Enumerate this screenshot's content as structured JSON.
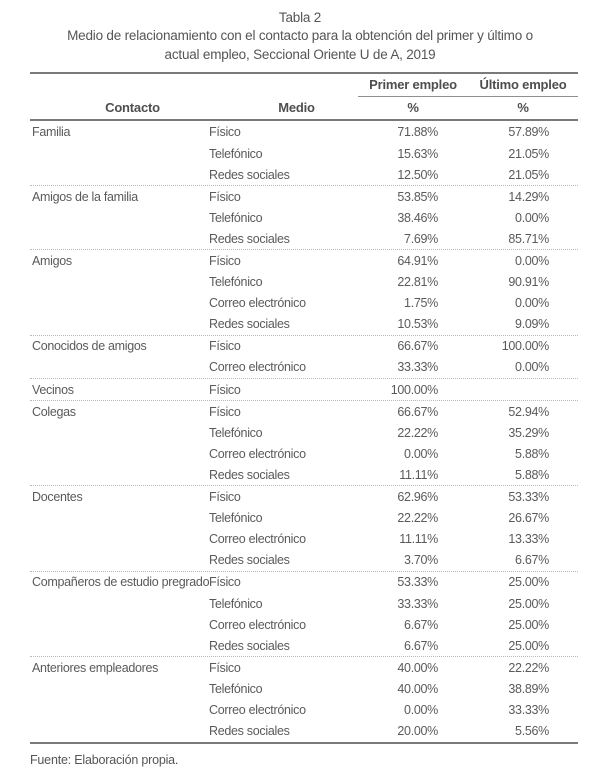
{
  "table": {
    "label": "Tabla 2",
    "title_line1": "Medio de relacionamiento con el contacto para la obtención del primer y último o",
    "title_line2": "actual empleo, Seccional Oriente U de A, 2019",
    "source": "Fuente: Elaboración propia.",
    "headers": {
      "contacto": "Contacto",
      "medio": "Medio",
      "primer_empleo": "Primer empleo",
      "ultimo_empleo": "Último empleo",
      "percent_primer": "%",
      "percent_ultimo": "%"
    },
    "groups": [
      {
        "contacto": "Familia",
        "rows": [
          {
            "medio": "Físico",
            "primer": "71.88%",
            "ultimo": "57.89%"
          },
          {
            "medio": "Telefónico",
            "primer": "15.63%",
            "ultimo": "21.05%"
          },
          {
            "medio": "Redes sociales",
            "primer": "12.50%",
            "ultimo": "21.05%"
          }
        ]
      },
      {
        "contacto": "Amigos de la familia",
        "rows": [
          {
            "medio": "Físico",
            "primer": "53.85%",
            "ultimo": "14.29%"
          },
          {
            "medio": "Telefónico",
            "primer": "38.46%",
            "ultimo": "0.00%"
          },
          {
            "medio": "Redes sociales",
            "primer": "7.69%",
            "ultimo": "85.71%"
          }
        ]
      },
      {
        "contacto": "Amigos",
        "rows": [
          {
            "medio": "Físico",
            "primer": "64.91%",
            "ultimo": "0.00%"
          },
          {
            "medio": "Telefónico",
            "primer": "22.81%",
            "ultimo": "90.91%"
          },
          {
            "medio": "Correo electrónico",
            "primer": "1.75%",
            "ultimo": "0.00%"
          },
          {
            "medio": "Redes sociales",
            "primer": "10.53%",
            "ultimo": "9.09%"
          }
        ]
      },
      {
        "contacto": "Conocidos de amigos",
        "rows": [
          {
            "medio": "Físico",
            "primer": "66.67%",
            "ultimo": "100.00%"
          },
          {
            "medio": "Correo electrónico",
            "primer": "33.33%",
            "ultimo": "0.00%"
          }
        ]
      },
      {
        "contacto": "Vecinos",
        "rows": [
          {
            "medio": "Físico",
            "primer": "100.00%",
            "ultimo": ""
          }
        ]
      },
      {
        "contacto": "Colegas",
        "rows": [
          {
            "medio": "Físico",
            "primer": "66.67%",
            "ultimo": "52.94%"
          },
          {
            "medio": "Telefónico",
            "primer": "22.22%",
            "ultimo": "35.29%"
          },
          {
            "medio": "Correo electrónico",
            "primer": "0.00%",
            "ultimo": "5.88%"
          },
          {
            "medio": "Redes sociales",
            "primer": "11.11%",
            "ultimo": "5.88%"
          }
        ]
      },
      {
        "contacto": "Docentes",
        "rows": [
          {
            "medio": "Físico",
            "primer": "62.96%",
            "ultimo": "53.33%"
          },
          {
            "medio": "Telefónico",
            "primer": "22.22%",
            "ultimo": "26.67%"
          },
          {
            "medio": "Correo electrónico",
            "primer": "11.11%",
            "ultimo": "13.33%"
          },
          {
            "medio": "Redes sociales",
            "primer": "3.70%",
            "ultimo": "6.67%"
          }
        ]
      },
      {
        "contacto": "Compañeros de estudio pregrado",
        "rows": [
          {
            "medio": "Físico",
            "primer": "53.33%",
            "ultimo": "25.00%"
          },
          {
            "medio": "Telefónico",
            "primer": "33.33%",
            "ultimo": "25.00%"
          },
          {
            "medio": "Correo electrónico",
            "primer": "6.67%",
            "ultimo": "25.00%"
          },
          {
            "medio": "Redes sociales",
            "primer": "6.67%",
            "ultimo": "25.00%"
          }
        ]
      },
      {
        "contacto": "Anteriores empleadores",
        "rows": [
          {
            "medio": "Físico",
            "primer": "40.00%",
            "ultimo": "22.22%"
          },
          {
            "medio": "Telefónico",
            "primer": "40.00%",
            "ultimo": "38.89%"
          },
          {
            "medio": "Correo electrónico",
            "primer": "0.00%",
            "ultimo": "33.33%"
          },
          {
            "medio": "Redes sociales",
            "primer": "20.00%",
            "ultimo": "5.56%"
          }
        ]
      }
    ],
    "colors": {
      "text": "#5a5a5a",
      "heading": "#4e4e4e",
      "rule": "#7a7a7a",
      "dotted_rule": "#b8b8b8",
      "background": "#ffffff"
    }
  }
}
